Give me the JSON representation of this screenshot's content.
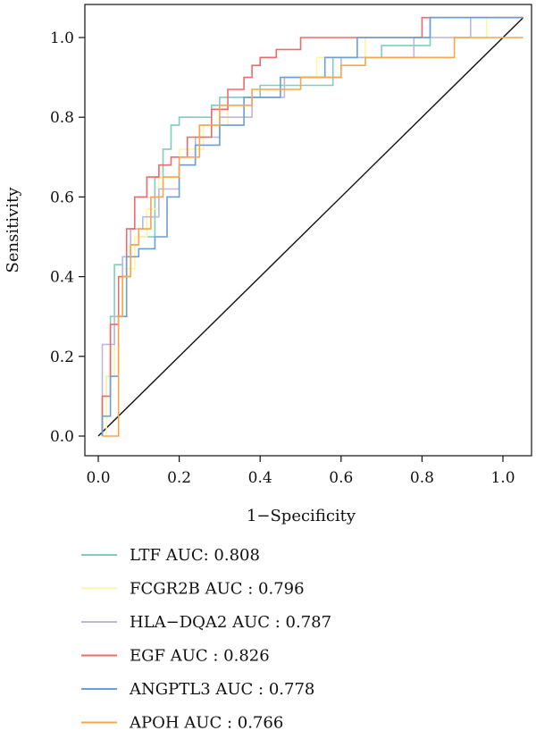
{
  "chart_data": {
    "type": "line",
    "xlabel": "1−Specificity",
    "ylabel": "Sensitivity",
    "xlim": [
      -0.04,
      1.08
    ],
    "ylim": [
      -0.04,
      1.08
    ],
    "xticks": [
      "0.0",
      "0.2",
      "0.4",
      "0.6",
      "0.8",
      "1.0"
    ],
    "yticks": [
      "0.0",
      "0.2",
      "0.4",
      "0.6",
      "0.8",
      "1.0"
    ],
    "grid": false,
    "legend_position": "bottom-left",
    "reference_line": [
      [
        0,
        0
      ],
      [
        1.05,
        1.05
      ]
    ],
    "series": [
      {
        "name": "LTF AUC: 0.808",
        "color": "#7fcdbb",
        "x": [
          0.01,
          0.01,
          0.02,
          0.02,
          0.03,
          0.03,
          0.04,
          0.04,
          0.06,
          0.06,
          0.08,
          0.08,
          0.1,
          0.1,
          0.14,
          0.14,
          0.16,
          0.16,
          0.18,
          0.18,
          0.2,
          0.2,
          0.28,
          0.28,
          0.3,
          0.3,
          0.4,
          0.4,
          0.58,
          0.58,
          0.7,
          0.7,
          0.82,
          0.82,
          1.05
        ],
        "y": [
          0.0,
          0.1,
          0.1,
          0.15,
          0.15,
          0.3,
          0.3,
          0.43,
          0.43,
          0.45,
          0.45,
          0.48,
          0.48,
          0.5,
          0.5,
          0.65,
          0.65,
          0.72,
          0.72,
          0.78,
          0.78,
          0.8,
          0.8,
          0.83,
          0.83,
          0.85,
          0.85,
          0.88,
          0.88,
          0.95,
          0.95,
          0.98,
          0.98,
          1.05,
          1.05
        ]
      },
      {
        "name": "FCGR2B AUC : 0.796",
        "color": "#fff5a5",
        "x": [
          0.02,
          0.02,
          0.04,
          0.04,
          0.06,
          0.06,
          0.09,
          0.09,
          0.12,
          0.12,
          0.15,
          0.15,
          0.2,
          0.2,
          0.26,
          0.26,
          0.32,
          0.32,
          0.38,
          0.38,
          0.46,
          0.46,
          0.54,
          0.54,
          0.66,
          0.66,
          0.96,
          0.96,
          1.05
        ],
        "y": [
          0.0,
          0.15,
          0.15,
          0.3,
          0.3,
          0.42,
          0.42,
          0.5,
          0.5,
          0.57,
          0.57,
          0.65,
          0.65,
          0.72,
          0.72,
          0.78,
          0.78,
          0.83,
          0.83,
          0.87,
          0.87,
          0.9,
          0.9,
          0.95,
          0.95,
          1.0,
          1.0,
          1.05,
          1.05
        ]
      },
      {
        "name": "HLA−DQA2 AUC : 0.787",
        "color": "#bcb8d9",
        "x": [
          0.01,
          0.01,
          0.04,
          0.04,
          0.06,
          0.06,
          0.08,
          0.08,
          0.11,
          0.11,
          0.15,
          0.15,
          0.2,
          0.2,
          0.24,
          0.24,
          0.3,
          0.3,
          0.38,
          0.38,
          0.46,
          0.46,
          0.6,
          0.6,
          0.78,
          0.78,
          0.92,
          0.92,
          1.05
        ],
        "y": [
          0.0,
          0.23,
          0.23,
          0.3,
          0.3,
          0.45,
          0.45,
          0.52,
          0.52,
          0.55,
          0.55,
          0.62,
          0.62,
          0.68,
          0.68,
          0.75,
          0.75,
          0.8,
          0.8,
          0.85,
          0.85,
          0.9,
          0.9,
          0.95,
          0.95,
          1.0,
          1.0,
          1.05,
          1.05
        ]
      },
      {
        "name": "EGF AUC : 0.826",
        "color": "#ef6a6a",
        "x": [
          0.01,
          0.01,
          0.03,
          0.03,
          0.05,
          0.05,
          0.07,
          0.07,
          0.09,
          0.09,
          0.12,
          0.12,
          0.15,
          0.15,
          0.18,
          0.18,
          0.22,
          0.22,
          0.28,
          0.28,
          0.32,
          0.32,
          0.36,
          0.36,
          0.38,
          0.38,
          0.4,
          0.4,
          0.44,
          0.44,
          0.5,
          0.5,
          0.8,
          0.8,
          1.05
        ],
        "y": [
          0.0,
          0.1,
          0.1,
          0.28,
          0.28,
          0.4,
          0.4,
          0.52,
          0.52,
          0.6,
          0.6,
          0.65,
          0.65,
          0.68,
          0.68,
          0.7,
          0.7,
          0.75,
          0.75,
          0.82,
          0.82,
          0.87,
          0.87,
          0.9,
          0.9,
          0.93,
          0.93,
          0.95,
          0.95,
          0.97,
          0.97,
          1.0,
          1.0,
          1.05,
          1.05
        ]
      },
      {
        "name": "ANGPTL3 AUC : 0.778",
        "color": "#6a9fd4",
        "x": [
          0.01,
          0.01,
          0.03,
          0.03,
          0.05,
          0.05,
          0.07,
          0.07,
          0.1,
          0.1,
          0.14,
          0.14,
          0.17,
          0.17,
          0.2,
          0.2,
          0.24,
          0.24,
          0.3,
          0.3,
          0.36,
          0.36,
          0.45,
          0.45,
          0.56,
          0.56,
          0.64,
          0.64,
          0.82,
          0.82,
          1.05
        ],
        "y": [
          0.0,
          0.05,
          0.05,
          0.15,
          0.15,
          0.3,
          0.3,
          0.45,
          0.45,
          0.47,
          0.47,
          0.5,
          0.5,
          0.6,
          0.6,
          0.68,
          0.68,
          0.73,
          0.73,
          0.78,
          0.78,
          0.85,
          0.85,
          0.9,
          0.9,
          0.95,
          0.95,
          1.0,
          1.0,
          1.05,
          1.05
        ]
      },
      {
        "name": "APOH AUC : 0.766",
        "color": "#f5a64a",
        "x": [
          0.01,
          0.01,
          0.05,
          0.05,
          0.06,
          0.06,
          0.08,
          0.08,
          0.1,
          0.1,
          0.13,
          0.13,
          0.16,
          0.16,
          0.2,
          0.2,
          0.25,
          0.25,
          0.3,
          0.3,
          0.38,
          0.38,
          0.5,
          0.5,
          0.6,
          0.6,
          0.66,
          0.66,
          0.88,
          0.88,
          1.05
        ],
        "y": [
          0.0,
          0.0,
          0.0,
          0.3,
          0.3,
          0.4,
          0.4,
          0.48,
          0.48,
          0.52,
          0.52,
          0.6,
          0.6,
          0.65,
          0.65,
          0.7,
          0.7,
          0.78,
          0.78,
          0.83,
          0.83,
          0.87,
          0.87,
          0.9,
          0.9,
          0.93,
          0.93,
          0.95,
          0.95,
          1.0,
          1.0
        ]
      }
    ]
  }
}
